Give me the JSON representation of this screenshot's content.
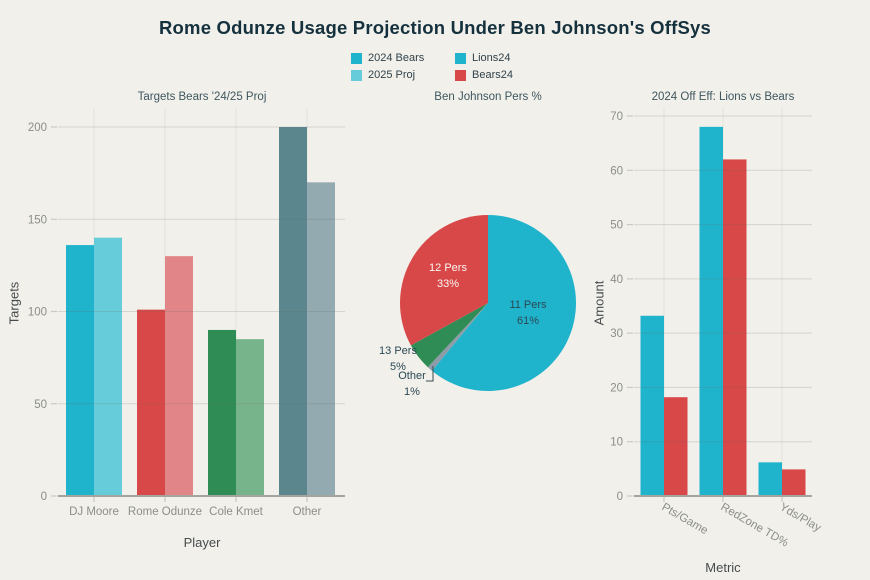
{
  "figure": {
    "title": "Rome Odunze Usage Projection Under Ben Johnson's OffSys",
    "background": "#F1F0EA"
  },
  "legend": {
    "items": [
      {
        "label": "2024 Bears",
        "color": "#1FB4CC"
      },
      {
        "label": "2025 Proj",
        "color": "#67CCD9"
      },
      {
        "label": "Lions24",
        "color": "#1FB4CC"
      },
      {
        "label": "Bears24",
        "color": "#D94848"
      }
    ]
  },
  "chart_data": [
    {
      "type": "bar",
      "title": "Targets Bears '24/25 Proj",
      "xlabel": "Player",
      "ylabel": "Targets",
      "categories": [
        "DJ Moore",
        "Rome Odunze",
        "Cole Kmet",
        "Other"
      ],
      "series": [
        {
          "name": "2024 Bears",
          "values": [
            136,
            101,
            90,
            200
          ]
        },
        {
          "name": "2025 Proj",
          "values": [
            140,
            130,
            85,
            170
          ]
        }
      ],
      "group_colors": [
        [
          "#1FB4CC",
          "#67CCD9"
        ],
        [
          "#D94848",
          "#E28589"
        ],
        [
          "#2F8C55",
          "#78B48B"
        ],
        [
          "#5B868E",
          "#93AAB0"
        ]
      ],
      "ylim": [
        0,
        200
      ],
      "yticks": [
        0,
        50,
        100,
        150,
        200
      ],
      "grid": true
    },
    {
      "type": "pie",
      "title": "Ben Johnson Pers %",
      "labels": [
        "11 Pers",
        "12 Pers",
        "13 Pers",
        "Other"
      ],
      "values": [
        61,
        33,
        5,
        1
      ],
      "colors": [
        "#1FB4CC",
        "#D94848",
        "#2F8C55",
        "#8D9CA6"
      ],
      "start": "top",
      "direction": "clockwise",
      "clockwise_order": [
        0,
        3,
        2,
        1
      ]
    },
    {
      "type": "bar",
      "title": "2024 Off Eff: Lions vs Bears",
      "xlabel": "Metric",
      "ylabel": "Amount",
      "categories": [
        "Pts/Game",
        "RedZone TD%",
        "Yds/Play"
      ],
      "series": [
        {
          "name": "Lions24",
          "color": "#1FB4CC",
          "values": [
            33.2,
            68,
            6.2
          ]
        },
        {
          "name": "Bears24",
          "color": "#D94848",
          "values": [
            18.2,
            62,
            4.9
          ]
        }
      ],
      "ylim": [
        0,
        70
      ],
      "yticks": [
        0,
        10,
        20,
        30,
        40,
        50,
        60,
        70
      ],
      "grid": true,
      "xtick_rotation_deg": 30
    }
  ]
}
